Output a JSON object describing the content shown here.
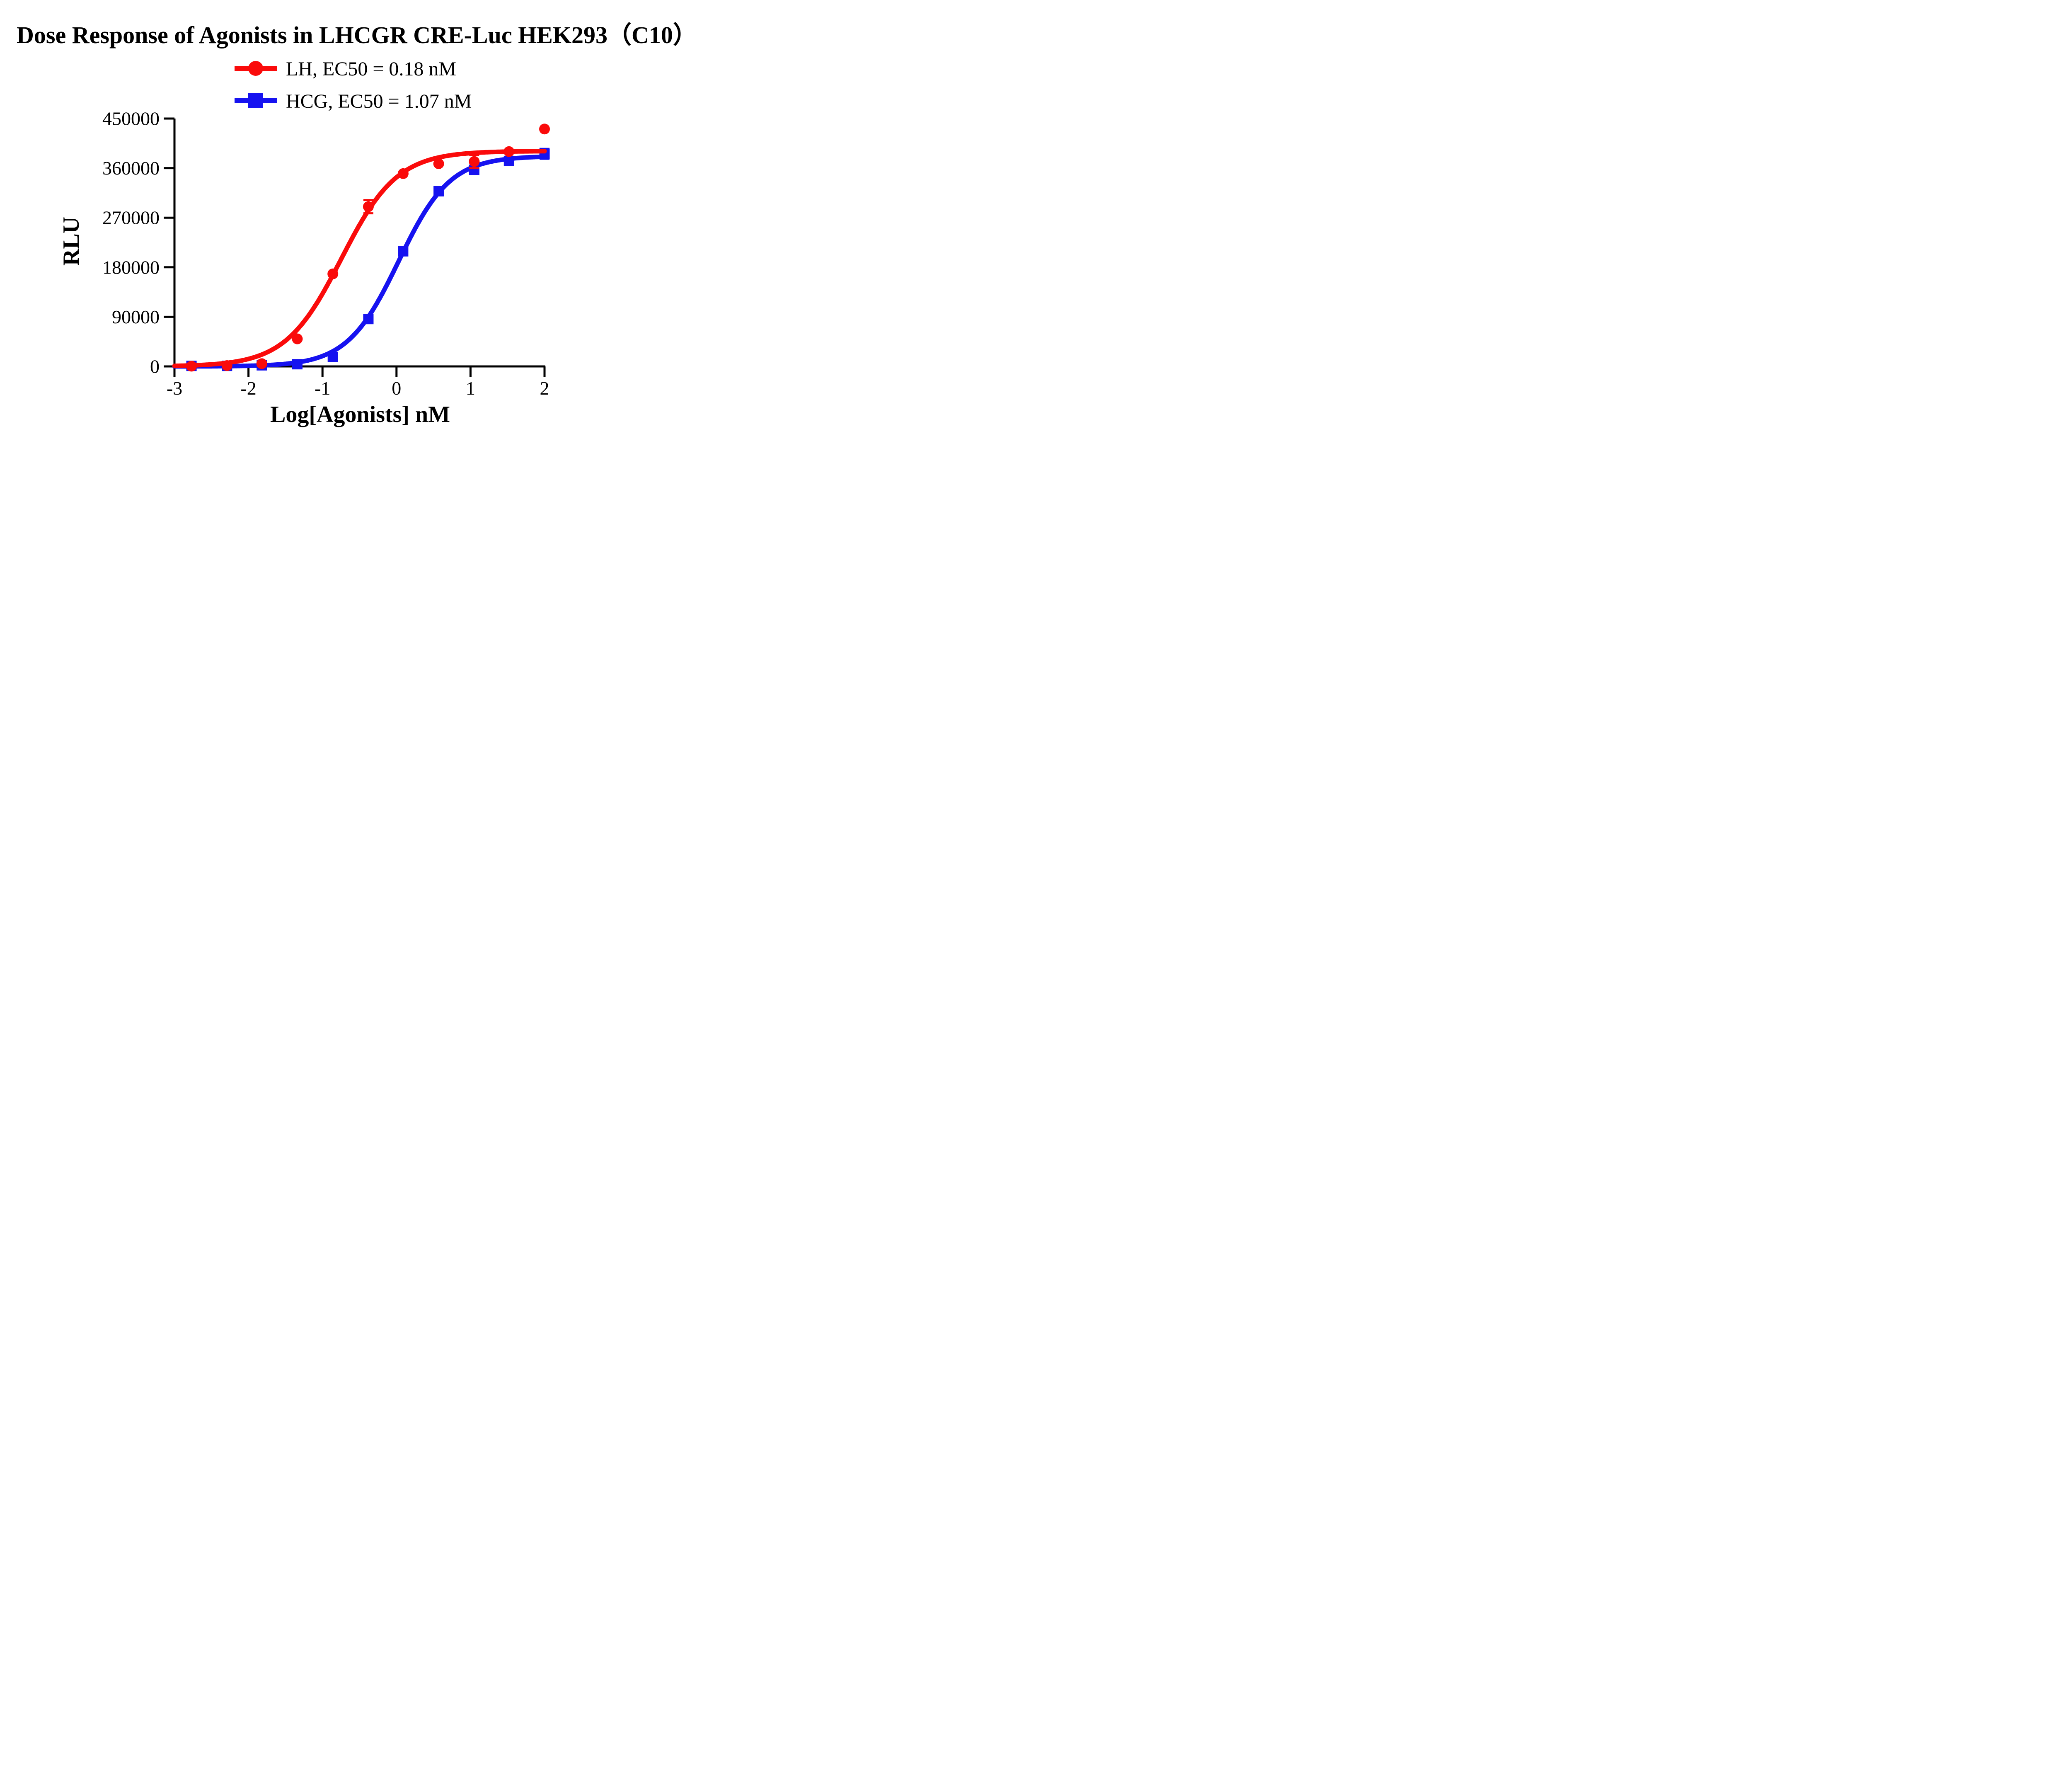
{
  "chart_data": {
    "type": "line",
    "title": "Dose Response of Agonists in LHCGR CRE-Luc HEK293（C10）",
    "xlabel": "Log[Agonists] nM",
    "ylabel": "RLU",
    "xlim": [
      -3,
      2
    ],
    "ylim": [
      0,
      450000
    ],
    "x_tick_labels": [
      "-3",
      "-2",
      "-1",
      "0",
      "1",
      "2"
    ],
    "x_ticks": [
      -3,
      -2,
      -1,
      0,
      1,
      2
    ],
    "y_tick_labels": [
      "0",
      "90000",
      "180000",
      "270000",
      "360000",
      "450000"
    ],
    "y_ticks": [
      0,
      90000,
      180000,
      270000,
      360000,
      450000
    ],
    "grid": false,
    "legend_position": "top-center",
    "background_color": "#ffffff",
    "axis_color": "#000000",
    "x": [
      -2.77,
      -2.29,
      -1.82,
      -1.34,
      -0.86,
      -0.38,
      0.09,
      0.57,
      1.05,
      1.52,
      2.0
    ],
    "series": [
      {
        "name": "LH",
        "legend_label": "LH, EC50 = 0.18 nM",
        "color": "#fa0b0b",
        "marker": "circle",
        "values": [
          500,
          1500,
          5000,
          50000,
          168000,
          290000,
          350000,
          368000,
          372000,
          390000,
          431000
        ],
        "error": [
          0,
          0,
          0,
          0,
          0,
          12000,
          0,
          0,
          12000,
          0,
          0
        ],
        "ec50_nM": 0.18,
        "fit": {
          "bottom": 0,
          "top": 391000,
          "hill": 1.15,
          "log_ec50": -0.745
        }
      },
      {
        "name": "HCG",
        "legend_label": "HCG, EC50 = 1.07 nM",
        "color": "#1612f0",
        "marker": "square",
        "values": [
          1000,
          1000,
          2000,
          4000,
          17000,
          86000,
          209000,
          318000,
          357000,
          373000,
          386000
        ],
        "error": [
          0,
          0,
          0,
          0,
          0,
          0,
          0,
          0,
          0,
          0,
          9000
        ],
        "ec50_nM": 1.07,
        "fit": {
          "bottom": 0,
          "top": 382000,
          "hill": 1.25,
          "log_ec50": 0.029
        }
      }
    ]
  }
}
